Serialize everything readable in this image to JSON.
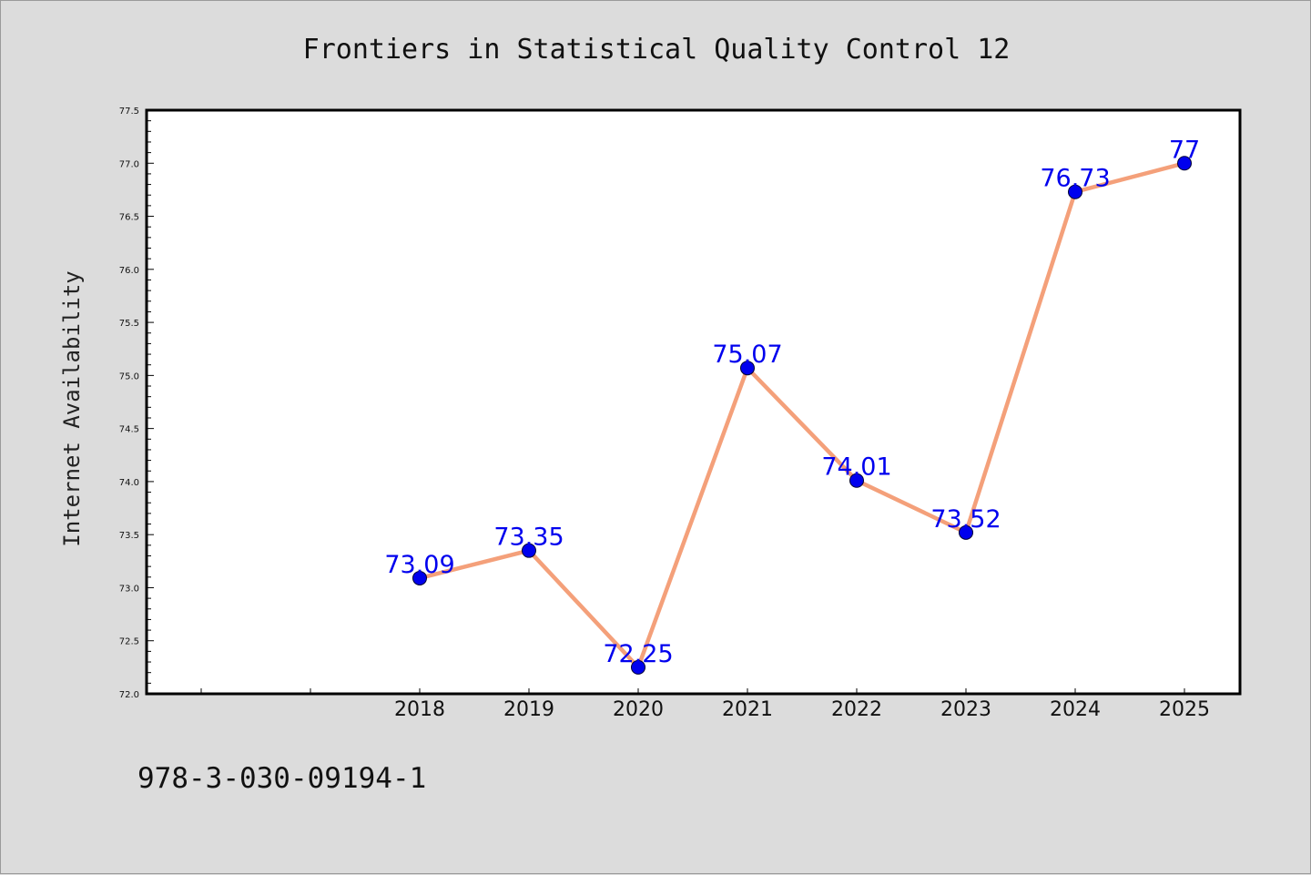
{
  "footer_text": "978-3-030-09194-1",
  "colors": {
    "background": "#dcdcdc",
    "plot_background": "#ffffff",
    "line": "#f4a07a",
    "marker": "#0000ee",
    "data_label": "#0000ee"
  },
  "chart_data": {
    "type": "line",
    "title": "Frontiers in Statistical Quality Control 12",
    "xlabel": "",
    "ylabel": "Internet Availability",
    "x": [
      "2018",
      "2019",
      "2020",
      "2021",
      "2022",
      "2023",
      "2024",
      "2025"
    ],
    "series": [
      {
        "values": [
          73.09,
          73.35,
          72.25,
          75.07,
          74.01,
          73.52,
          76.73,
          77
        ],
        "labels": [
          "73.09",
          "73.35",
          "72.25",
          "75.07",
          "74.01",
          "73.52",
          "76.73",
          "77"
        ]
      }
    ],
    "ylim": [
      72.0,
      77.5
    ],
    "yticks": [
      "72.0",
      "72.5",
      "73.0",
      "73.5",
      "74.0",
      "74.5",
      "75.0",
      "75.5",
      "76.0",
      "76.5",
      "77.0",
      "77.5"
    ],
    "grid": false,
    "legend": "none"
  }
}
